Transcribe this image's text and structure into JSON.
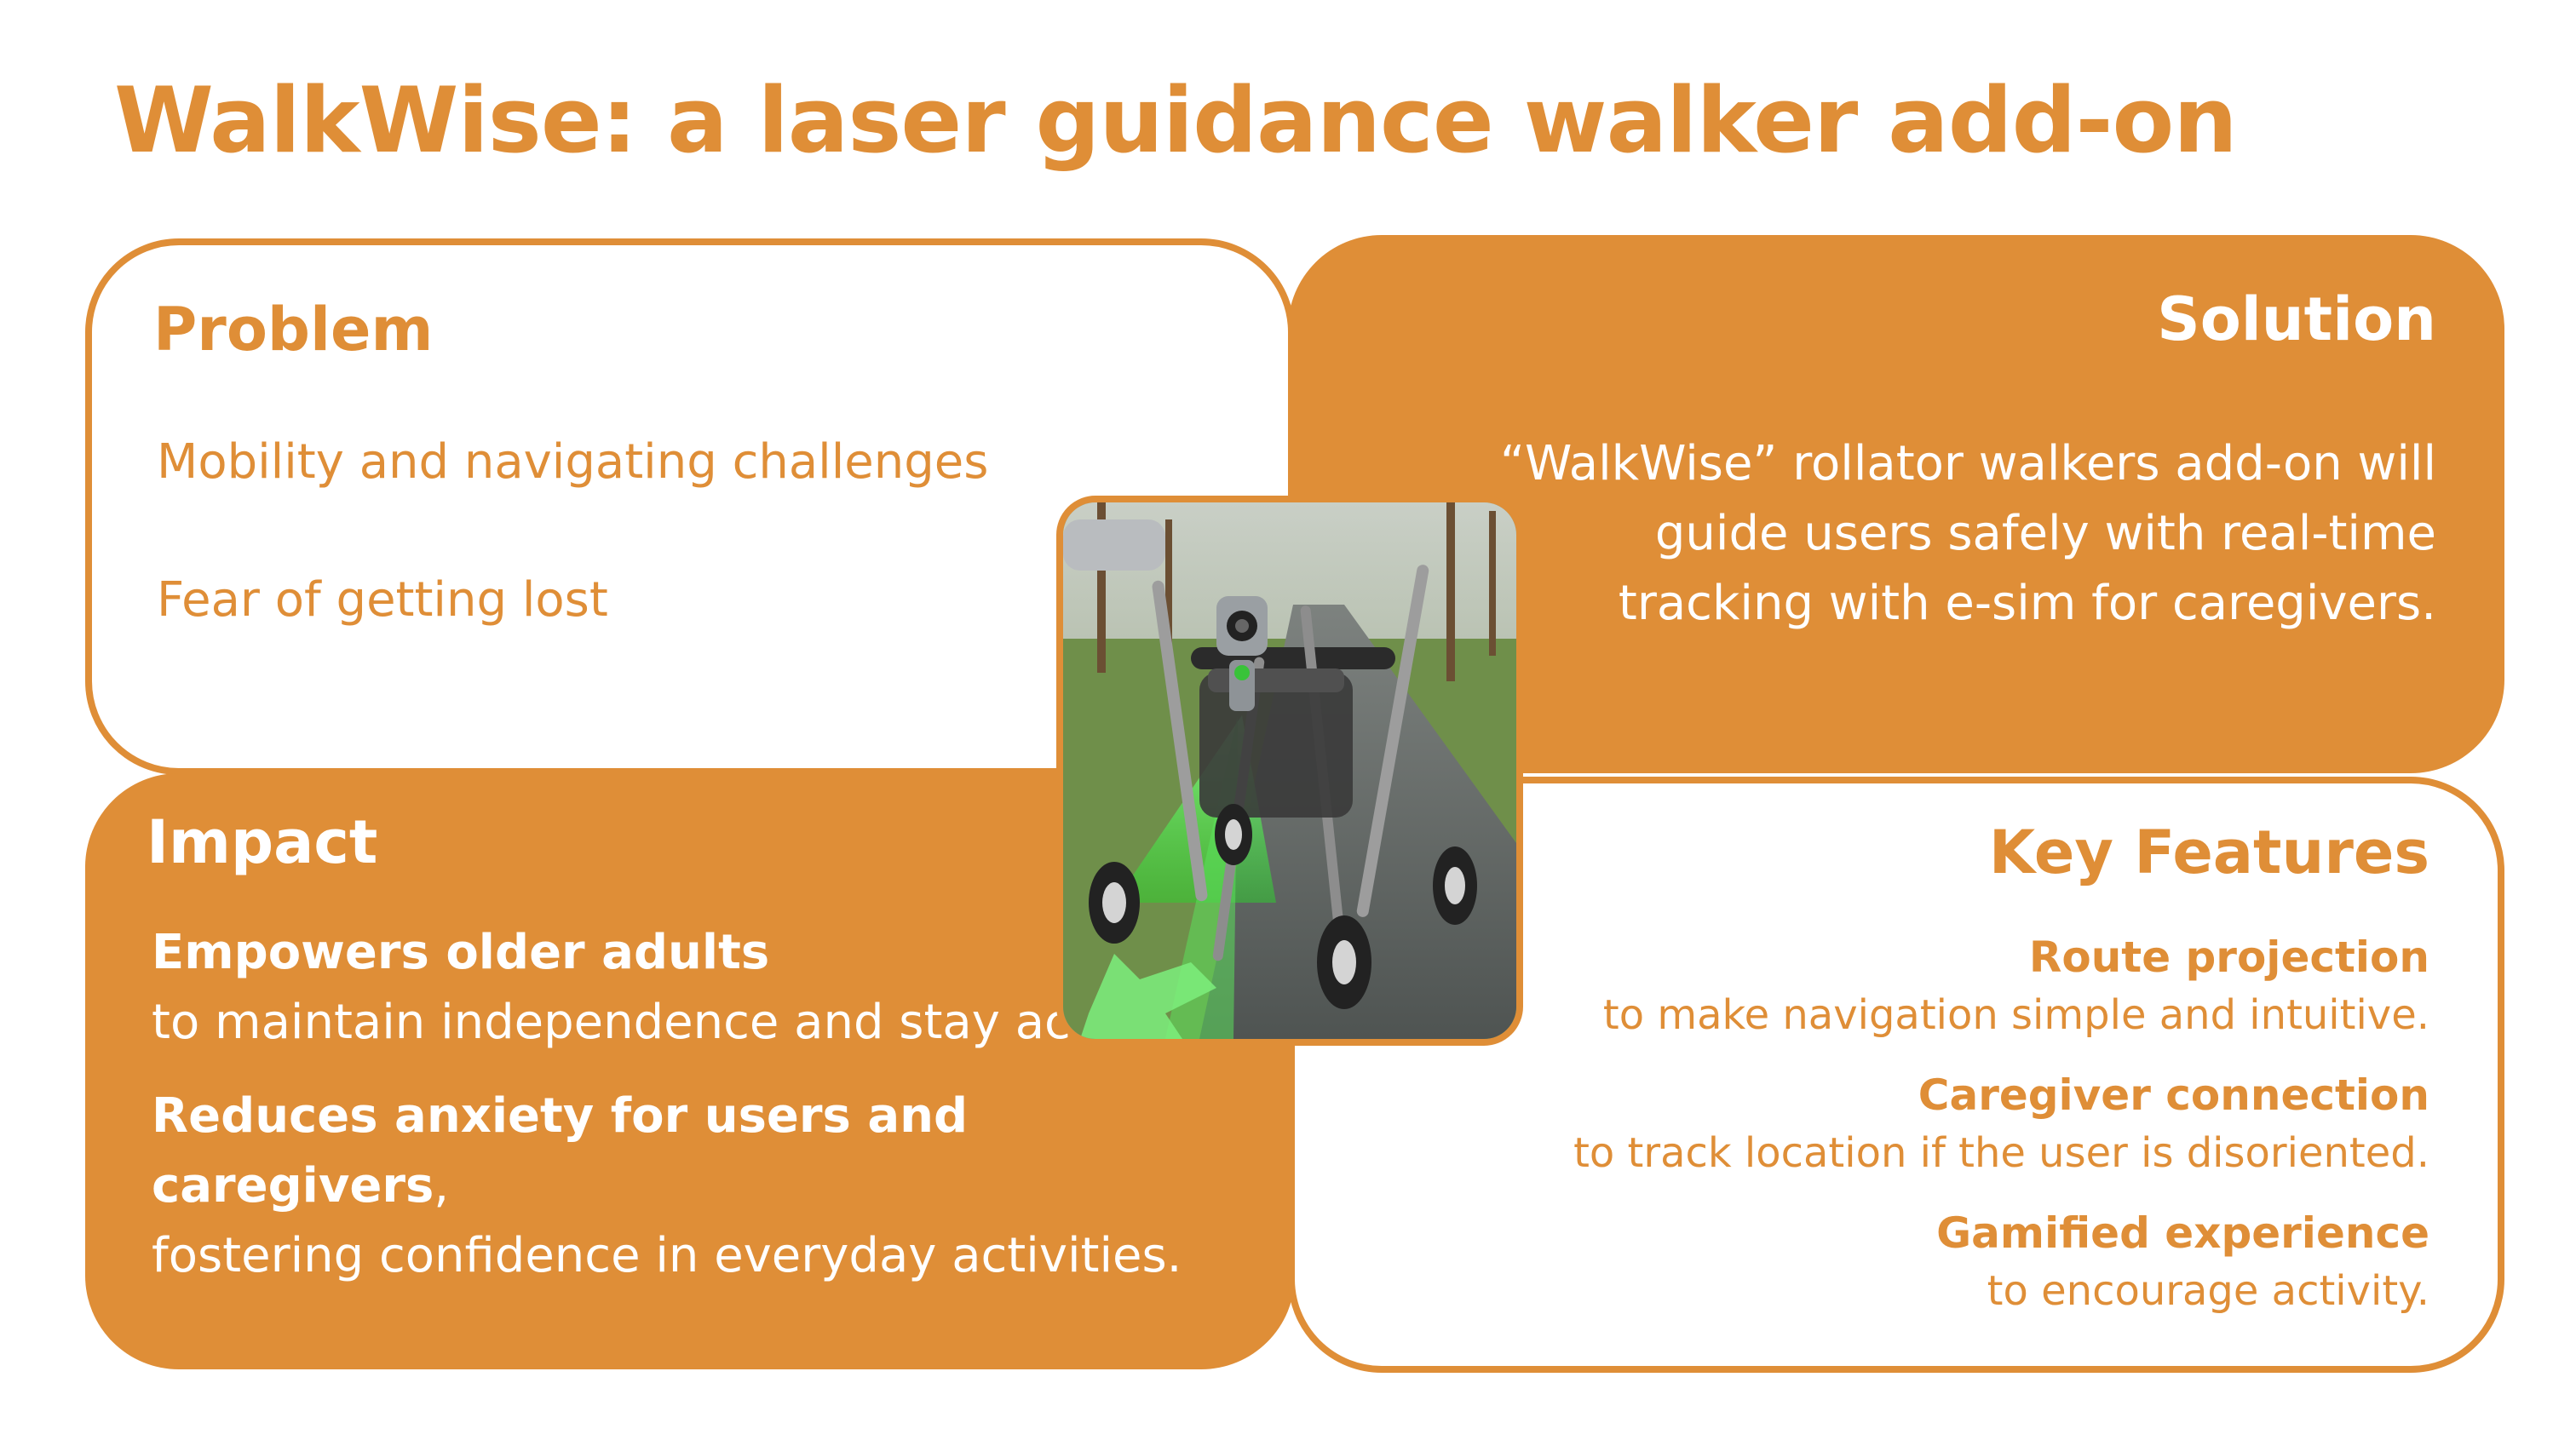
{
  "title": "WalkWise: a laser guidance walker add-on",
  "problem": {
    "heading": "Problem",
    "items": [
      "Mobility and navigating challenges",
      "Fear of getting lost"
    ]
  },
  "solution": {
    "heading": "Solution",
    "text": "“WalkWise” rollator walkers add-on will guide users safely with real-time tracking with e-sim for caregivers."
  },
  "impact": {
    "heading": "Impact",
    "items": [
      {
        "bold": "Empowers older adults",
        "text": "to maintain independence and stay active.",
        "punct": ""
      },
      {
        "bold": "Reduces anxiety for users and caregivers",
        "punct": ",",
        "text": "fostering confidence in everyday activities."
      }
    ]
  },
  "features": {
    "heading": "Key Features",
    "items": [
      {
        "title": "Route projection",
        "desc": "to make navigation simple and intuitive."
      },
      {
        "title": "Caregiver connection",
        "desc": "to track location if the user is disoriented."
      },
      {
        "title": "Gamified experience",
        "desc": "to encourage activity."
      }
    ]
  },
  "colors": {
    "accent": "#DF8E37",
    "laser": "#5BE05B",
    "background": "#FFFFFF"
  },
  "image": {
    "icon": "walker-laser-photo"
  }
}
